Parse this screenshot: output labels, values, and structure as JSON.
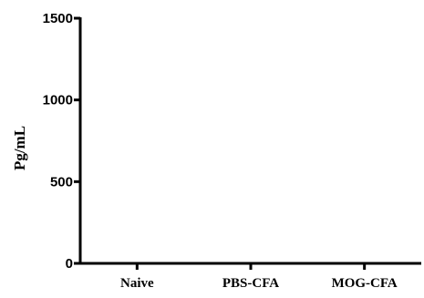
{
  "chart_data": {
    "type": "bar",
    "title": "",
    "xlabel": "",
    "ylabel": "Pg/mL",
    "categories": [
      "Naive",
      "PBS-CFA",
      "MOG-CFA"
    ],
    "values": [
      0,
      0,
      0
    ],
    "ylim": [
      0,
      1500
    ],
    "yticks": [
      0,
      500,
      1000,
      1500
    ],
    "ytick_labels": [
      "0",
      "500",
      "1000",
      "1500"
    ],
    "grid": false,
    "legend": "none"
  }
}
